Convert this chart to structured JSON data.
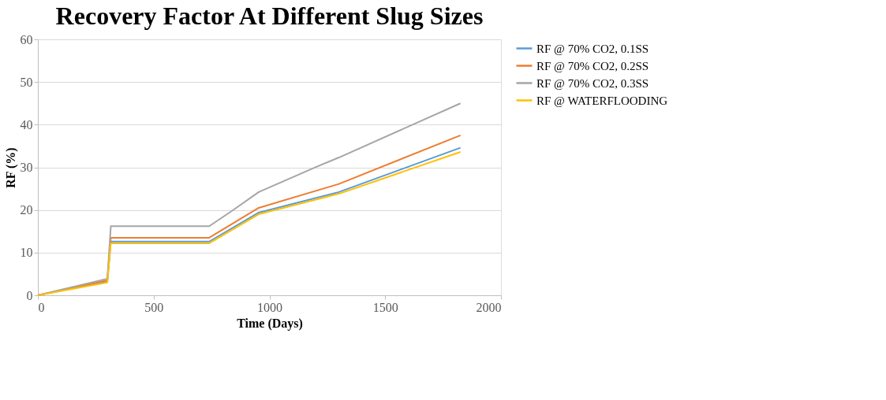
{
  "chart_data": {
    "type": "line",
    "title": "Recovery Factor At Different Slug Sizes",
    "xlabel": "Time (Days)",
    "ylabel": "RF (%)",
    "xlim": [
      0,
      2000
    ],
    "xticks": [
      0,
      500,
      1000,
      1500,
      2000
    ],
    "ylim": [
      0,
      60
    ],
    "yticks": [
      0,
      10,
      20,
      30,
      40,
      50,
      60
    ],
    "grid": "y",
    "legend": "right",
    "marker": "none",
    "line_style": "solid",
    "series": [
      {
        "name": "RF @ 70% CO2, 0.1SS",
        "color": "#5b9bd5",
        "x": [
          0,
          300,
          315,
          740,
          954,
          1300,
          1825
        ],
        "values": [
          0,
          3.3,
          12.6,
          12.6,
          19.4,
          24.2,
          34.6
        ]
      },
      {
        "name": "RF @ 70% CO2, 0.2SS",
        "color": "#ed7d31",
        "x": [
          0,
          300,
          315,
          740,
          954,
          1300,
          1825
        ],
        "values": [
          0,
          3.5,
          13.5,
          13.5,
          20.5,
          26.1,
          37.5
        ]
      },
      {
        "name": "RF @ 70% CO2, 0.3SS",
        "color": "#a5a5a5",
        "x": [
          0,
          300,
          315,
          740,
          841,
          954,
          1203,
          1300,
          1825
        ],
        "values": [
          0,
          3.9,
          16.2,
          16.2,
          19.9,
          24.2,
          30.1,
          32.3,
          45.0
        ]
      },
      {
        "name": "RF @ WATERFLOODING",
        "color": "#ffc000",
        "x": [
          0,
          300,
          315,
          740,
          954,
          1300,
          1825
        ],
        "values": [
          0,
          3.0,
          12.2,
          12.2,
          19.0,
          23.8,
          33.6
        ]
      }
    ]
  }
}
